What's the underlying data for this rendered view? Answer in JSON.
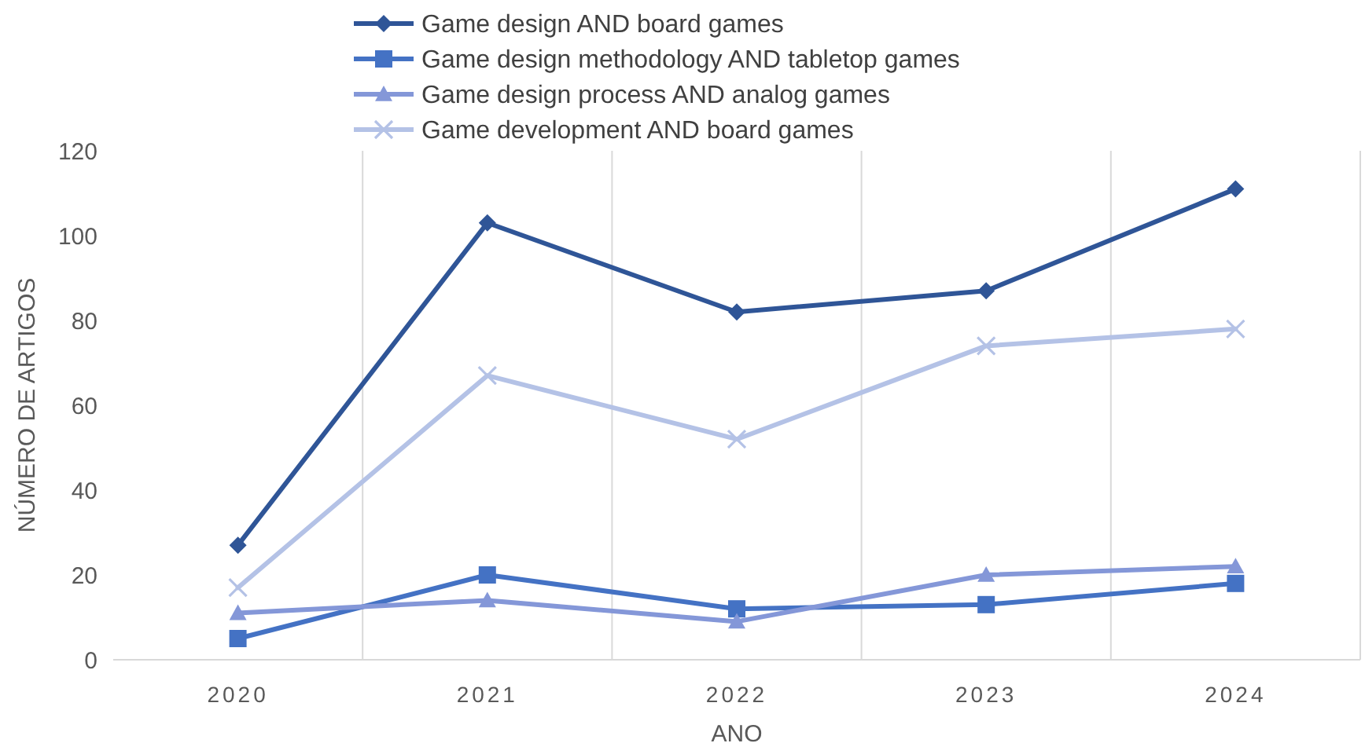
{
  "chart_data": {
    "type": "line",
    "xlabel": "ANO",
    "ylabel": "NÚMERO DE ARTIGOS",
    "categories": [
      "2020",
      "2021",
      "2022",
      "2023",
      "2024"
    ],
    "ylim": [
      0,
      120
    ],
    "yticks": [
      0,
      20,
      40,
      60,
      80,
      100,
      120
    ],
    "grid": "x",
    "legend": "top",
    "line_style": "solid",
    "series": [
      {
        "name": "Game design AND board games",
        "color": "#2f5597",
        "marker": "diamond",
        "values": [
          27,
          103,
          82,
          87,
          111
        ]
      },
      {
        "name": "Game design methodology AND tabletop games",
        "color": "#4472c4",
        "marker": "square",
        "values": [
          5,
          20,
          12,
          13,
          18
        ]
      },
      {
        "name": "Game design process AND analog games",
        "color": "#8497d8",
        "marker": "triangle",
        "values": [
          11,
          14,
          9,
          20,
          22
        ]
      },
      {
        "name": "Game development AND board games",
        "color": "#b4c2e6",
        "marker": "cross",
        "values": [
          17,
          67,
          52,
          74,
          78
        ]
      }
    ]
  }
}
